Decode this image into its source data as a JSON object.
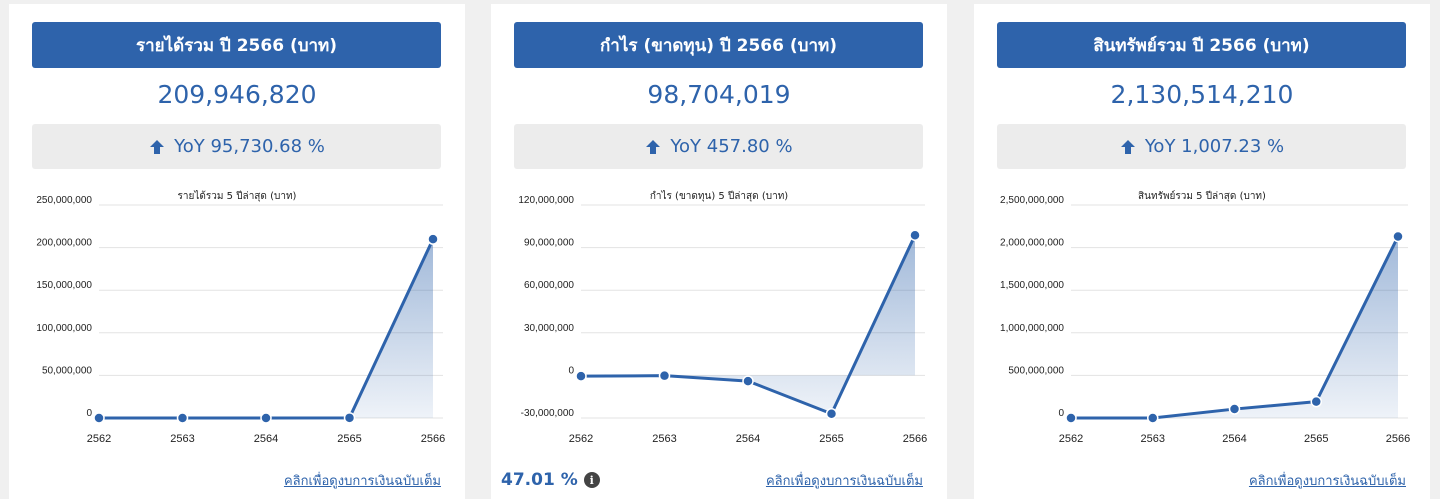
{
  "cards": [
    {
      "header": "รายได้รวม ปี 2566 (บาท)",
      "value": "209,946,820",
      "yoy": "YoY 95,730.68 %",
      "link": "คลิกเพื่อดูงบการเงินฉบับเต็ม"
    },
    {
      "header": "กำไร (ขาดทุน) ปี 2566 (บาท)",
      "value": "98,704,019",
      "yoy": "YoY 457.80 %",
      "link": "คลิกเพื่อดูงบการเงินฉบับเต็ม"
    },
    {
      "header": "สินทรัพย์รวม ปี 2566 (บาท)",
      "value": "2,130,514,210",
      "yoy": "YoY 1,007.23 %",
      "link": "คลิกเพื่อดูงบการเงินฉบับเต็ม"
    }
  ],
  "note": {
    "value": "47.01 %",
    "icon": "info-icon"
  },
  "colors": {
    "brand": "#2e63ab",
    "yoy_background": "#ececec"
  },
  "chart_data": [
    {
      "type": "area",
      "title": "รายได้รวม 5 ปีล่าสุด (บาท)",
      "xlabel": "",
      "ylabel": "",
      "categories": [
        "2562",
        "2563",
        "2564",
        "2565",
        "2566"
      ],
      "values": [
        0,
        0,
        0,
        219000,
        209946820
      ],
      "ylim": [
        0,
        250000000
      ],
      "yticks": [
        0,
        50000000,
        100000000,
        150000000,
        200000000,
        250000000
      ],
      "ytick_labels": [
        "0",
        "50,000,000",
        "100,000,000",
        "150,000,000",
        "200,000,000",
        "250,000,000"
      ],
      "grid": true
    },
    {
      "type": "area",
      "title": "กำไร (ขาดทุน) 5 ปีล่าสุด (บาท)",
      "xlabel": "",
      "ylabel": "",
      "categories": [
        "2562",
        "2563",
        "2564",
        "2565",
        "2566"
      ],
      "values": [
        -500000,
        -200000,
        -4000000,
        -27000000,
        98704019
      ],
      "ylim": [
        -30000000,
        120000000
      ],
      "yticks": [
        -30000000,
        0,
        30000000,
        60000000,
        90000000,
        120000000
      ],
      "ytick_labels": [
        "-30,000,000",
        "0",
        "30,000,000",
        "60,000,000",
        "90,000,000",
        "120,000,000"
      ],
      "grid": true
    },
    {
      "type": "area",
      "title": "สินทรัพย์รวม 5 ปีล่าสุด (บาท)",
      "xlabel": "",
      "ylabel": "",
      "categories": [
        "2562",
        "2563",
        "2564",
        "2565",
        "2566"
      ],
      "values": [
        0,
        0,
        105000000,
        192000000,
        2130514210
      ],
      "ylim": [
        0,
        2500000000
      ],
      "yticks": [
        0,
        500000000,
        1000000000,
        1500000000,
        2000000000,
        2500000000
      ],
      "ytick_labels": [
        "0",
        "500,000,000",
        "1,000,000,000",
        "1,500,000,000",
        "2,000,000,000",
        "2,500,000,000"
      ],
      "grid": true
    }
  ]
}
